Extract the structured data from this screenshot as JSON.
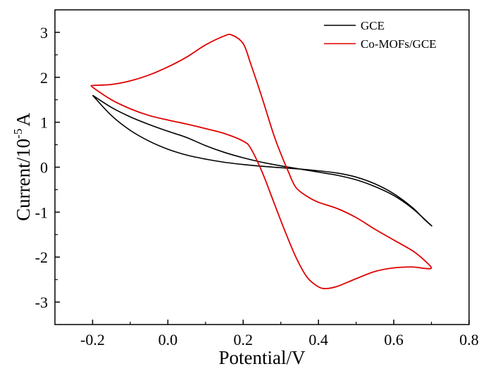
{
  "chart_data": {
    "type": "line",
    "xlabel": "Potential/V",
    "ylabel_main": "Current/10",
    "ylabel_exp": "-5",
    "ylabel_unit": "A",
    "xlim": [
      -0.3,
      0.8
    ],
    "ylim": [
      -3.5,
      3.5
    ],
    "xticks": [
      -0.2,
      0.0,
      0.2,
      0.4,
      0.6,
      0.8
    ],
    "xtick_labels": [
      "-0.2",
      "0.0",
      "0.2",
      "0.4",
      "0.6",
      "0.8"
    ],
    "yticks": [
      -3,
      -2,
      -1,
      0,
      1,
      2,
      3
    ],
    "ytick_labels": [
      "-3",
      "-2",
      "-1",
      "0",
      "1",
      "2",
      "3"
    ],
    "grid": false,
    "legend_position": "top-right",
    "series": [
      {
        "name": "GCE",
        "color": "#000000",
        "points": [
          [
            -0.2,
            1.6
          ],
          [
            -0.15,
            1.33
          ],
          [
            -0.1,
            1.12
          ],
          [
            -0.05,
            0.95
          ],
          [
            0.0,
            0.8
          ],
          [
            0.05,
            0.66
          ],
          [
            0.1,
            0.48
          ],
          [
            0.15,
            0.33
          ],
          [
            0.2,
            0.21
          ],
          [
            0.25,
            0.11
          ],
          [
            0.3,
            0.03
          ],
          [
            0.35,
            -0.04
          ],
          [
            0.4,
            -0.11
          ],
          [
            0.45,
            -0.18
          ],
          [
            0.5,
            -0.28
          ],
          [
            0.55,
            -0.43
          ],
          [
            0.6,
            -0.63
          ],
          [
            0.65,
            -0.92
          ],
          [
            0.7,
            -1.3
          ],
          [
            0.68,
            -1.15
          ],
          [
            0.65,
            -0.9
          ],
          [
            0.6,
            -0.59
          ],
          [
            0.55,
            -0.37
          ],
          [
            0.5,
            -0.22
          ],
          [
            0.45,
            -0.13
          ],
          [
            0.4,
            -0.08
          ],
          [
            0.35,
            -0.04
          ],
          [
            0.3,
            -0.01
          ],
          [
            0.25,
            0.02
          ],
          [
            0.2,
            0.06
          ],
          [
            0.15,
            0.11
          ],
          [
            0.1,
            0.18
          ],
          [
            0.05,
            0.27
          ],
          [
            0.0,
            0.4
          ],
          [
            -0.05,
            0.58
          ],
          [
            -0.1,
            0.82
          ],
          [
            -0.15,
            1.15
          ],
          [
            -0.2,
            1.6
          ]
        ]
      },
      {
        "name": "Co-MOFs/GCE",
        "color": "#e00000",
        "points": [
          [
            -0.2,
            1.82
          ],
          [
            -0.15,
            1.84
          ],
          [
            -0.1,
            1.92
          ],
          [
            -0.05,
            2.05
          ],
          [
            0.0,
            2.23
          ],
          [
            0.05,
            2.45
          ],
          [
            0.1,
            2.72
          ],
          [
            0.15,
            2.92
          ],
          [
            0.17,
            2.94
          ],
          [
            0.2,
            2.75
          ],
          [
            0.22,
            2.3
          ],
          [
            0.25,
            1.55
          ],
          [
            0.28,
            0.75
          ],
          [
            0.3,
            0.3
          ],
          [
            0.32,
            -0.1
          ],
          [
            0.34,
            -0.45
          ],
          [
            0.37,
            -0.65
          ],
          [
            0.4,
            -0.78
          ],
          [
            0.45,
            -0.92
          ],
          [
            0.5,
            -1.12
          ],
          [
            0.55,
            -1.38
          ],
          [
            0.6,
            -1.62
          ],
          [
            0.65,
            -1.86
          ],
          [
            0.68,
            -2.06
          ],
          [
            0.7,
            -2.24
          ],
          [
            0.68,
            -2.25
          ],
          [
            0.65,
            -2.22
          ],
          [
            0.6,
            -2.24
          ],
          [
            0.55,
            -2.32
          ],
          [
            0.5,
            -2.48
          ],
          [
            0.45,
            -2.65
          ],
          [
            0.42,
            -2.7
          ],
          [
            0.4,
            -2.66
          ],
          [
            0.37,
            -2.45
          ],
          [
            0.34,
            -2.0
          ],
          [
            0.31,
            -1.4
          ],
          [
            0.28,
            -0.75
          ],
          [
            0.25,
            -0.1
          ],
          [
            0.22,
            0.42
          ],
          [
            0.2,
            0.58
          ],
          [
            0.15,
            0.75
          ],
          [
            0.1,
            0.86
          ],
          [
            0.05,
            0.96
          ],
          [
            0.0,
            1.05
          ],
          [
            -0.05,
            1.15
          ],
          [
            -0.1,
            1.3
          ],
          [
            -0.15,
            1.5
          ],
          [
            -0.2,
            1.78
          ],
          [
            -0.2,
            1.82
          ]
        ]
      }
    ]
  }
}
